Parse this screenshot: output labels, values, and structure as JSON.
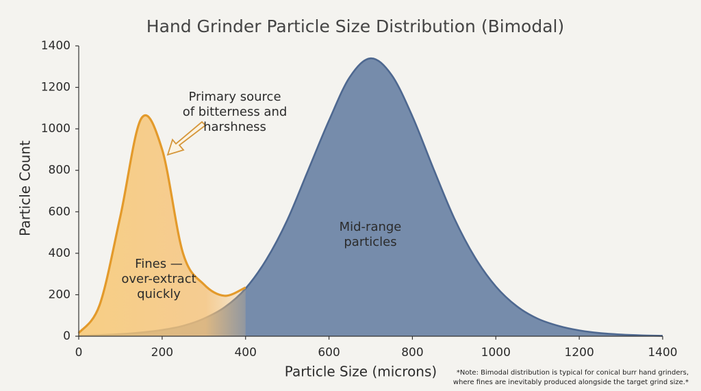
{
  "chart_data": {
    "type": "area",
    "title": "Hand Grinder Particle Size Distribution (Bimodal)",
    "x_label": "Particle Size (microns)",
    "y_label": "Particle Count",
    "x": [
      0,
      50,
      100,
      150,
      200,
      250,
      300,
      350,
      400,
      450,
      500,
      550,
      600,
      650,
      700,
      750,
      800,
      850,
      900,
      950,
      1000,
      1050,
      1100,
      1150,
      1200,
      1250,
      1300,
      1350,
      1400
    ],
    "series": [
      {
        "name": "Mid-range particles",
        "color": "#6f86a6",
        "values": [
          2,
          5,
          10,
          18,
          30,
          50,
          85,
          140,
          230,
          370,
          560,
          800,
          1040,
          1250,
          1340,
          1260,
          1060,
          810,
          570,
          380,
          240,
          145,
          85,
          50,
          28,
          15,
          8,
          4,
          2
        ]
      },
      {
        "name": "Fines",
        "color": "#e39a2b",
        "values": [
          15,
          150,
          580,
          1050,
          900,
          400,
          250,
          195,
          235,
          null,
          null,
          null,
          null,
          null,
          null,
          null,
          null,
          null,
          null,
          null,
          null,
          null,
          null,
          null,
          null,
          null,
          null,
          null,
          null
        ]
      }
    ],
    "xlim": [
      0,
      1400
    ],
    "ylim": [
      0,
      1400
    ],
    "xticks": [
      0,
      200,
      400,
      600,
      800,
      1000,
      1200,
      1400
    ],
    "yticks": [
      0,
      200,
      400,
      600,
      800,
      1000,
      1200,
      1400
    ],
    "grid": false,
    "annotations": [
      {
        "lines": [
          "Primary source",
          "of bitterness and",
          "harshness"
        ]
      },
      {
        "lines": [
          "Fines —",
          "over-extract",
          "quickly"
        ]
      },
      {
        "lines": [
          "Mid-range",
          "particles"
        ]
      }
    ],
    "note": [
      "*Note: Bimodal distribution is typical for conical burr hand grinders,",
      "where fines are inevitably produced alongside the target grind size.*"
    ]
  }
}
